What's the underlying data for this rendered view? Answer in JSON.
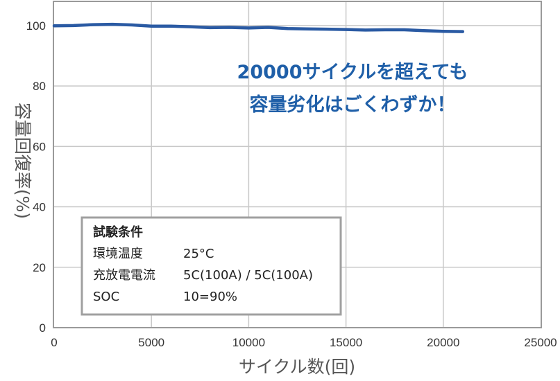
{
  "chart_data": {
    "type": "line",
    "xlabel": "サイクル数(回)",
    "ylabel": "容量回復率(%)",
    "xlim": [
      0,
      25000
    ],
    "ylim": [
      0,
      108
    ],
    "xticks": [
      "0",
      "5000",
      "10000",
      "15000",
      "20000",
      "25000"
    ],
    "yticks": [
      "0",
      "20",
      "40",
      "60",
      "80",
      "100"
    ],
    "grid": true,
    "series": [
      {
        "color": "#2a5aa3",
        "x": [
          0,
          1000,
          2000,
          3000,
          4000,
          5000,
          6000,
          7000,
          8000,
          9000,
          10000,
          11000,
          12000,
          13000,
          14000,
          15000,
          16000,
          17000,
          18000,
          19000,
          20000,
          21000
        ],
        "y": [
          99.9,
          100.0,
          100.3,
          100.4,
          100.2,
          99.8,
          99.8,
          99.6,
          99.3,
          99.4,
          99.2,
          99.4,
          99.0,
          98.9,
          98.8,
          98.7,
          98.5,
          98.6,
          98.6,
          98.3,
          98.1,
          98.0
        ]
      }
    ],
    "annotation": [
      "20000サイクルを超えても",
      "容量劣化はごくわずか！"
    ]
  },
  "conditions": {
    "title": "試験条件",
    "rows": [
      {
        "label": "環境温度",
        "value": "25°C"
      },
      {
        "label": "充放電電流",
        "value": "5C(100A) / 5C(100A)"
      },
      {
        "label": "SOC",
        "value": "10=90%"
      }
    ]
  },
  "colors": {
    "line": "#2a5aa3",
    "callout": "#1f5fa8",
    "grid": "#c8c8c8",
    "frame": "#9a9a9a"
  }
}
